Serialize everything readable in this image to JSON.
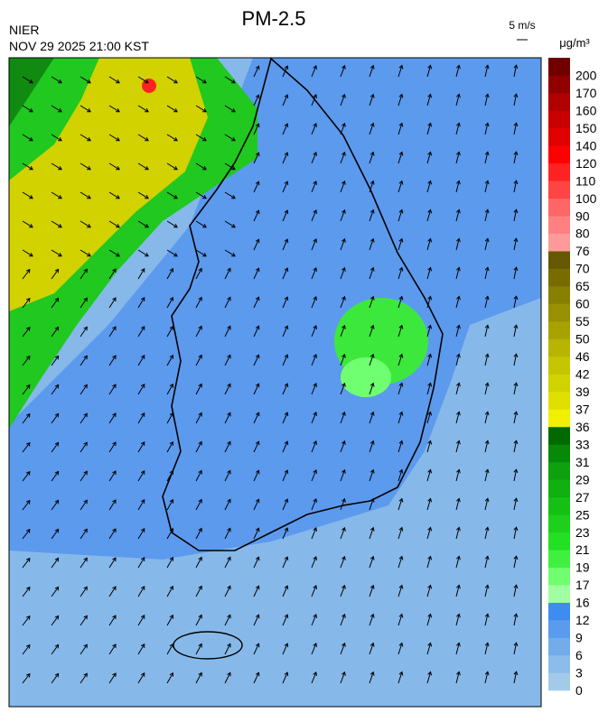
{
  "header": {
    "title": "PM-2.5",
    "agency": "NIER",
    "timestamp": "NOV 29 2025 21:00 KST",
    "wind_scale": "5 m/s",
    "unit": "μg/m³"
  },
  "colorbar": {
    "ticks": [
      0,
      3,
      6,
      9,
      12,
      16,
      17,
      19,
      21,
      23,
      25,
      27,
      29,
      31,
      33,
      36,
      37,
      39,
      42,
      46,
      50,
      55,
      60,
      65,
      70,
      76,
      80,
      90,
      100,
      110,
      120,
      140,
      150,
      160,
      170,
      200
    ],
    "colors": [
      "#a3cbe9",
      "#8cbdea",
      "#73aceb",
      "#5a9bed",
      "#3f8cf0",
      "#a0ffa0",
      "#70ff70",
      "#40f040",
      "#22e022",
      "#1cd01c",
      "#14c014",
      "#10b010",
      "#0ea00e",
      "#088808",
      "#006a00",
      "#f0f000",
      "#e0e000",
      "#d2d200",
      "#c6c600",
      "#b8b400",
      "#a8a200",
      "#989000",
      "#888000",
      "#786c00",
      "#665800",
      "#ff9a9a",
      "#ff8080",
      "#ff6666",
      "#ff4444",
      "#ff2222",
      "#ff0000",
      "#e00000",
      "#c80000",
      "#b00000",
      "#900000",
      "#700000"
    ]
  }
}
